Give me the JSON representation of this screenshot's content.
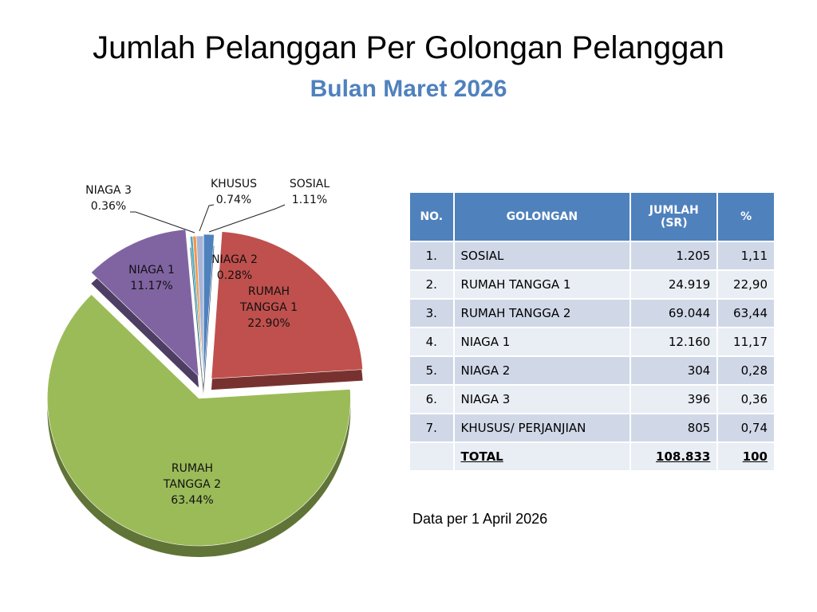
{
  "title": "Jumlah Pelanggan Per Golongan Pelanggan",
  "subtitle": "Bulan Maret 2026",
  "chart_data": {
    "type": "pie",
    "title": "",
    "slices": [
      {
        "label": "SOSIAL",
        "pct_label": "1.11%",
        "value": 1.11,
        "color": "#4f81bd"
      },
      {
        "label": "RUMAH TANGGA 1",
        "pct_label": "22.90%",
        "value": 22.9,
        "color": "#c0504d"
      },
      {
        "label": "RUMAH TANGGA 2",
        "pct_label": "63.44%",
        "value": 63.44,
        "color": "#9bbb59"
      },
      {
        "label": "NIAGA 1",
        "pct_label": "11.17%",
        "value": 11.17,
        "color": "#8064a2"
      },
      {
        "label": "NIAGA 2",
        "pct_label": "0.28%",
        "value": 0.28,
        "color": "#4bacc6"
      },
      {
        "label": "NIAGA 3",
        "pct_label": "0.36%",
        "value": 0.36,
        "color": "#f79646"
      },
      {
        "label": "KHUSUS",
        "pct_label": "0.74%",
        "value": 0.74,
        "color": "#a5b5d8"
      }
    ]
  },
  "table": {
    "headers": {
      "no": "NO.",
      "golongan": "GOLONGAN",
      "jumlah_1": "JUMLAH",
      "jumlah_2": "(SR)",
      "pct": "%"
    },
    "rows": [
      {
        "no": "1.",
        "golongan": "SOSIAL",
        "jumlah": "1.205",
        "pct": "1,11"
      },
      {
        "no": "2.",
        "golongan": "RUMAH TANGGA 1",
        "jumlah": "24.919",
        "pct": "22,90"
      },
      {
        "no": "3.",
        "golongan": "RUMAH TANGGA 2",
        "jumlah": "69.044",
        "pct": "63,44"
      },
      {
        "no": "4.",
        "golongan": "NIAGA 1",
        "jumlah": "12.160",
        "pct": "11,17"
      },
      {
        "no": "5.",
        "golongan": "NIAGA 2",
        "jumlah": "304",
        "pct": "0,28"
      },
      {
        "no": "6.",
        "golongan": "NIAGA 3",
        "jumlah": "396",
        "pct": "0,36"
      },
      {
        "no": "7.",
        "golongan": "KHUSUS/ PERJANJIAN",
        "jumlah": "805",
        "pct": "0,74"
      }
    ],
    "total": {
      "no": "",
      "golongan": "TOTAL",
      "jumlah": "108.833",
      "pct": "100"
    }
  },
  "note": "Data per 1 April 2026"
}
